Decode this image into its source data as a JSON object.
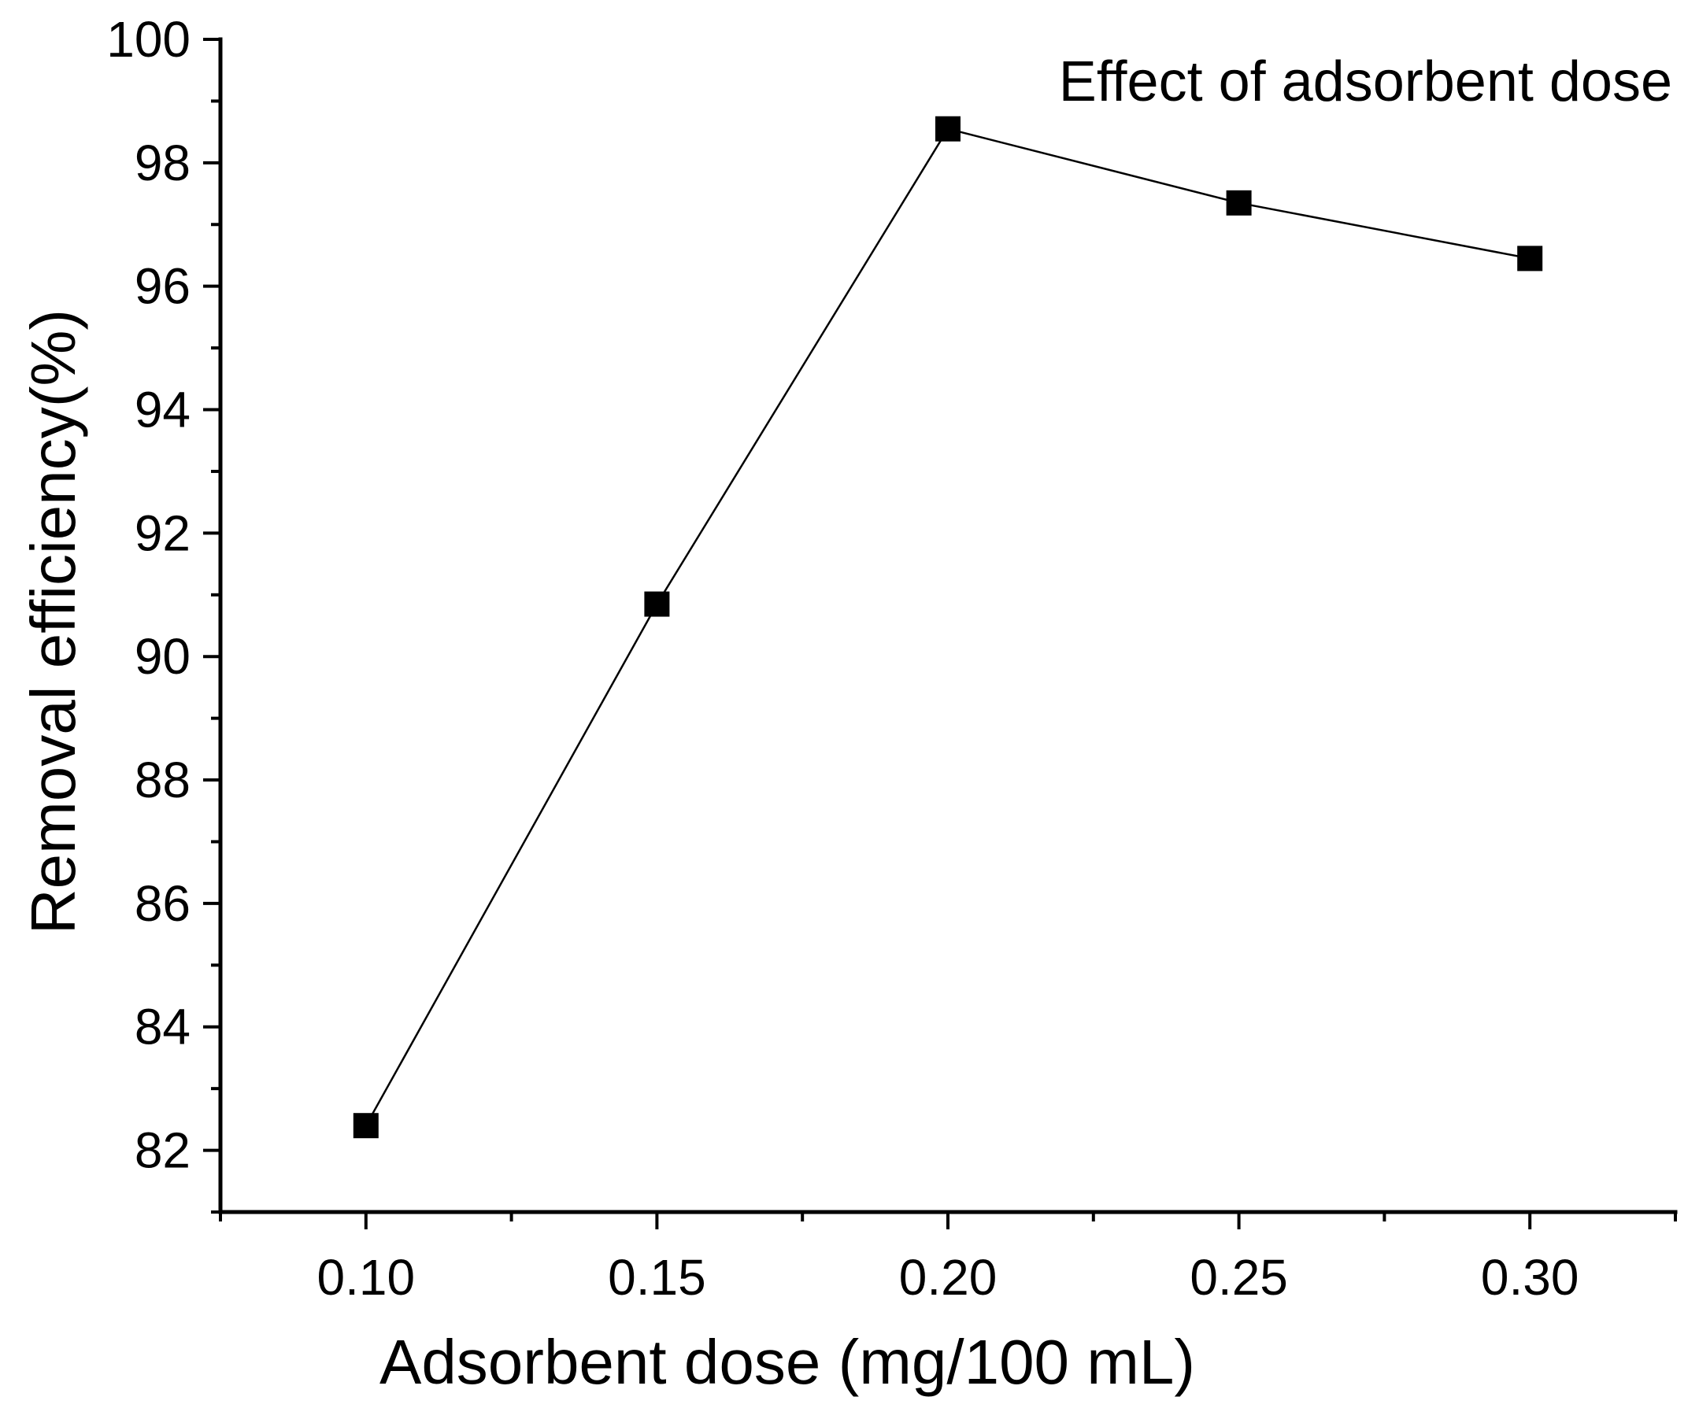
{
  "chart_data": {
    "type": "line",
    "title": "",
    "xlabel": "Adsorbent dose (mg/100 mL)",
    "ylabel": "Removal efficiency(%)",
    "xlim": [
      0.075,
      0.325
    ],
    "ylim": [
      81,
      100
    ],
    "x_ticks": [
      0.1,
      0.15,
      0.2,
      0.25,
      0.3
    ],
    "x_tick_labels": [
      "0.10",
      "0.15",
      "0.20",
      "0.25",
      "0.30"
    ],
    "y_ticks": [
      82,
      84,
      86,
      88,
      90,
      92,
      94,
      96,
      98,
      100
    ],
    "y_tick_labels": [
      "82",
      "84",
      "86",
      "88",
      "90",
      "92",
      "94",
      "96",
      "98",
      "100"
    ],
    "grid": false,
    "legend_position": "top-right",
    "series": [
      {
        "name": "Effect of adsorbent dose",
        "x": [
          0.1,
          0.15,
          0.2,
          0.25,
          0.3
        ],
        "y": [
          82.4,
          90.85,
          98.55,
          97.35,
          96.45
        ],
        "marker": "square",
        "color": "#000000"
      }
    ]
  }
}
